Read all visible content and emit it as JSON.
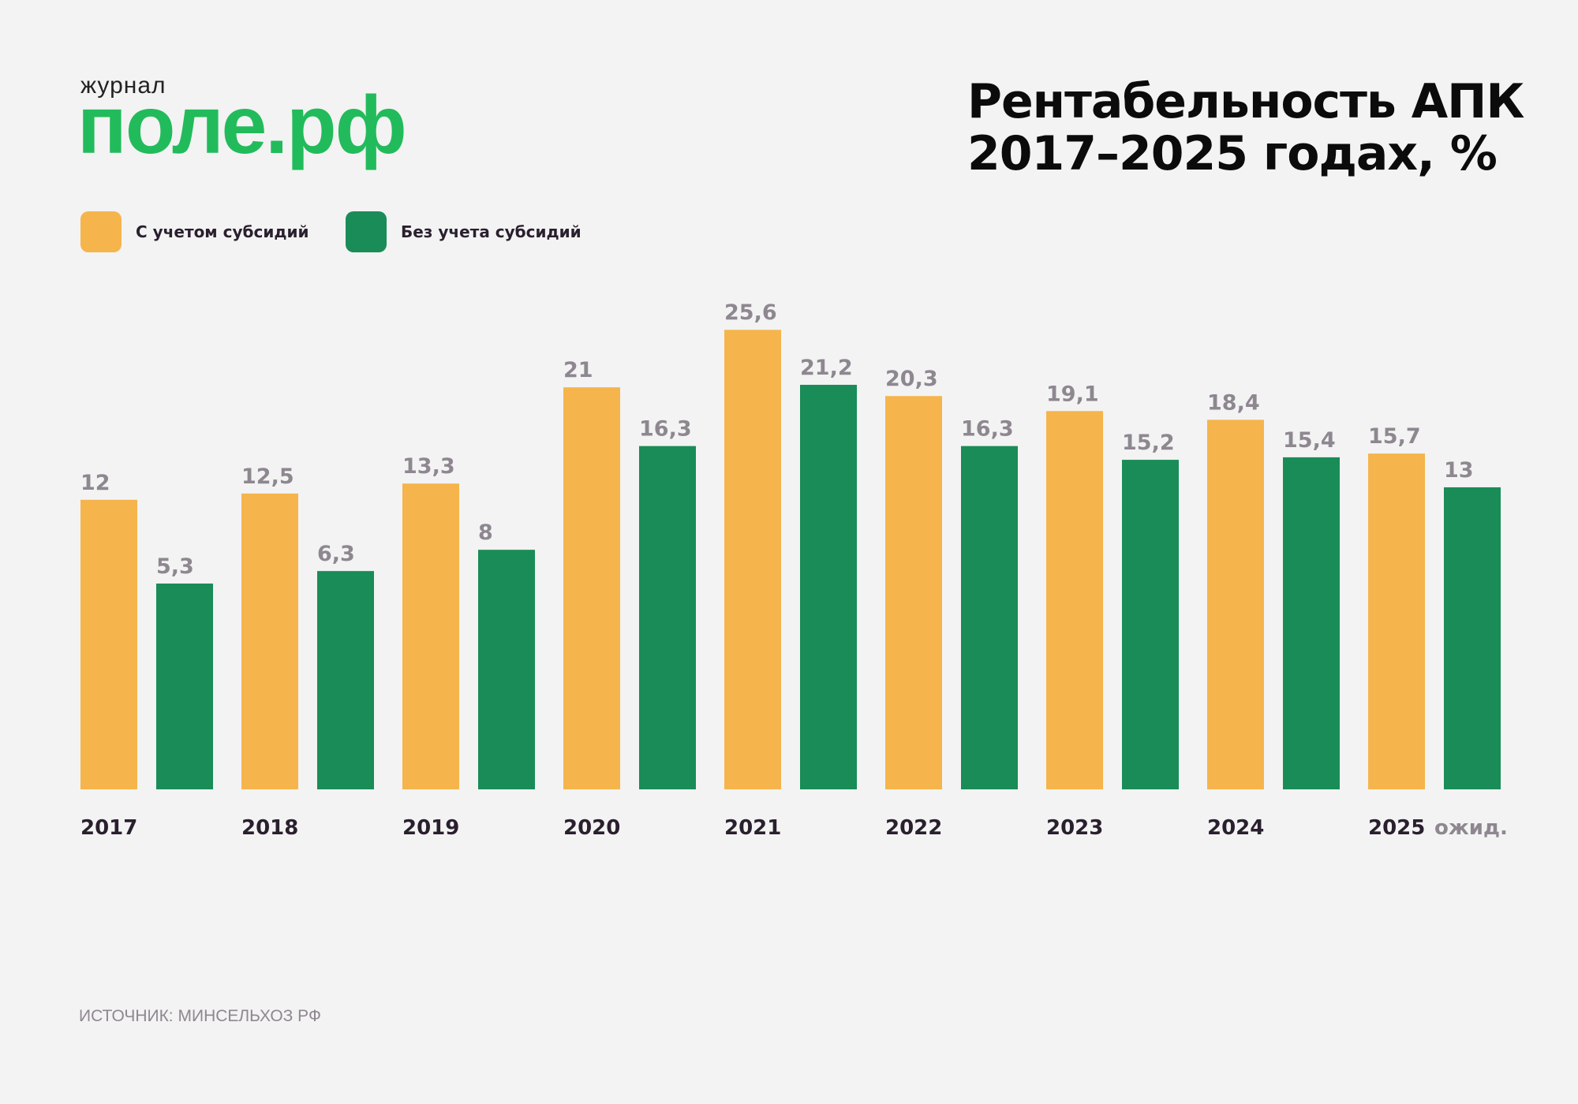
{
  "logo": {
    "top": "журнал",
    "main": "поле.рф"
  },
  "title_line1": "Рентабельность АПК",
  "title_line2": "2017–2025 годах, %",
  "source": "ИСТОЧНИК: МИНСЕЛЬХОЗ РФ",
  "colors": {
    "background": "#f3f3f3",
    "with_subsidies": "#f5b54c",
    "without_subsidies": "#1a8c58",
    "logo": "#22bb5b",
    "value_label": "#8e8790"
  },
  "chart_data": {
    "type": "bar",
    "title": "Рентабельность АПК 2017–2025 годах, %",
    "categories": [
      "2017",
      "2018",
      "2019",
      "2020",
      "2021",
      "2022",
      "2023",
      "2024",
      "2025"
    ],
    "category_notes": {
      "2025": "ожид."
    },
    "series": [
      {
        "name": "С учетом субсидий",
        "color": "#f5b54c",
        "values": [
          12,
          12.5,
          13.3,
          21,
          25.6,
          20.3,
          19.1,
          18.4,
          15.7
        ],
        "labels": [
          "12",
          "12,5",
          "13,3",
          "21",
          "25,6",
          "20,3",
          "19,1",
          "18,4",
          "15,7"
        ]
      },
      {
        "name": "Без учета субсидий",
        "color": "#1a8c58",
        "values": [
          5.3,
          6.3,
          8,
          16.3,
          21.2,
          16.3,
          15.2,
          15.4,
          13
        ],
        "labels": [
          "5,3",
          "6,3",
          "8",
          "16,3",
          "21,2",
          "16,3",
          "15,2",
          "15,4",
          "13"
        ]
      }
    ],
    "legend": "top-left",
    "grid": false,
    "data_labels": true
  }
}
